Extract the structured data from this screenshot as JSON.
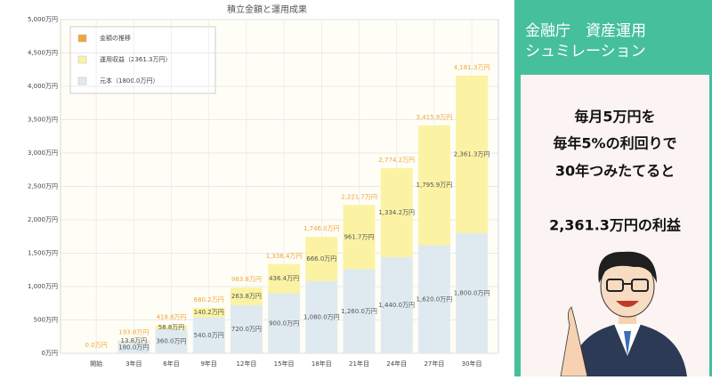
{
  "chart_data": {
    "type": "bar",
    "stacked": true,
    "title": "積立金額と運用成果",
    "categories": [
      "開始",
      "3年目",
      "6年目",
      "9年目",
      "12年目",
      "15年目",
      "18年目",
      "21年目",
      "24年目",
      "27年目",
      "30年目"
    ],
    "series": [
      {
        "name": "金額の推移",
        "type": "label",
        "color": "#f0a53a",
        "values": [
          0,
          193.8,
          418.8,
          680.2,
          983.8,
          1336.4,
          1746.0,
          2221.7,
          2774.2,
          3415.9,
          4161.3
        ],
        "value_labels": [
          "0.0万円",
          "193.8万円",
          "418.8万円",
          "680.2万円",
          "983.8万円",
          "1,336.4万円",
          "1,746.0万円",
          "2,221.7万円",
          "2,774.2万円",
          "3,415.9万円",
          "4,161.3万円"
        ]
      },
      {
        "name": "運用収益（2361.3万円）",
        "color": "#fbf3a3",
        "values": [
          0,
          13.8,
          58.8,
          140.2,
          263.8,
          436.4,
          666.0,
          961.7,
          1334.2,
          1795.9,
          2361.3
        ],
        "value_labels": [
          null,
          "13.8万円",
          "58.8万円",
          "140.2万円",
          "263.8万円",
          "436.4万円",
          "666.0万円",
          "961.7万円",
          "1,334.2万円",
          "1,795.9万円",
          "2,361.3万円"
        ]
      },
      {
        "name": "元本（1800.0万円）",
        "color": "#dfeaf0",
        "values": [
          0,
          180,
          360,
          540,
          720,
          900,
          1080,
          1260,
          1440,
          1620,
          1800
        ],
        "value_labels": [
          null,
          "180.0万円",
          "360.0万円",
          "540.0万円",
          "720.0万円",
          "900.0万円",
          "1,080.0万円",
          "1,260.0万円",
          "1,440.0万円",
          "1,620.0万円",
          "1,800.0万円"
        ]
      }
    ],
    "ylim": [
      0,
      5000
    ],
    "yticks": [
      {
        "value": 0,
        "label": "0万円"
      },
      {
        "value": 500,
        "label": "500万円"
      },
      {
        "value": 1000,
        "label": "1,000万円"
      },
      {
        "value": 1500,
        "label": "1,500万円"
      },
      {
        "value": 2000,
        "label": "2,000万円"
      },
      {
        "value": 2500,
        "label": "2,500万円"
      },
      {
        "value": 3000,
        "label": "3,000万円"
      },
      {
        "value": 3500,
        "label": "3,500万円"
      },
      {
        "value": 4000,
        "label": "4,000万円"
      },
      {
        "value": 4500,
        "label": "4,500万円"
      },
      {
        "value": 5000,
        "label": "5,000万円"
      }
    ],
    "grid": true,
    "legend": "top-left"
  },
  "panel": {
    "title": [
      "金融庁　資産運用",
      "シュミレーション"
    ],
    "lines": [
      "毎月5万円を",
      "毎年5%の利回りで",
      "30年つみたてると"
    ],
    "highlight": "2,361.3万円の利益"
  }
}
